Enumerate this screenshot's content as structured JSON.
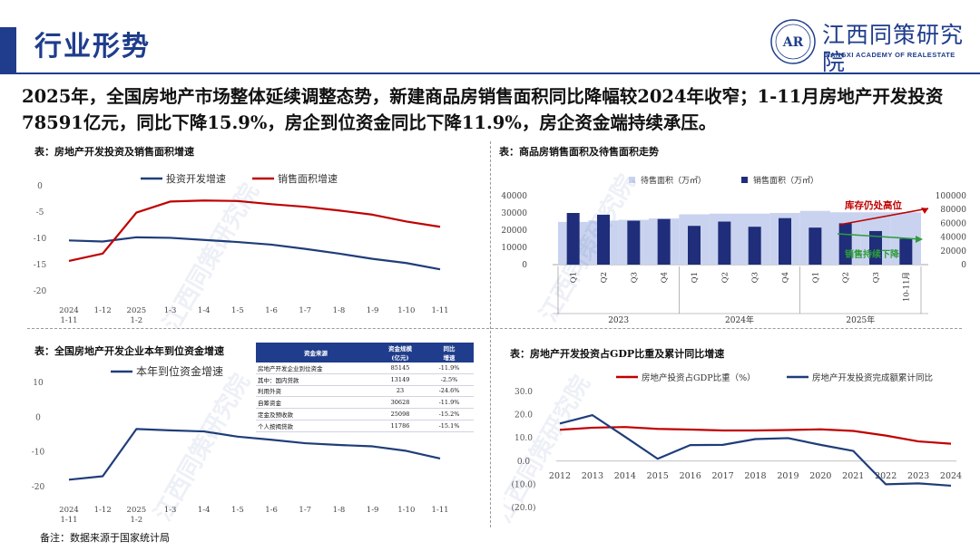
{
  "header": {
    "title": "行业形势",
    "org_name_cn": "江西同策研究院",
    "org_name_en": "JIANGXI ACADEMY OF REALESTATE",
    "logo_text": "AR"
  },
  "summary": "2025年，全国房地产市场整体延续调整态势，新建商品房销售面积同比降幅较2024年收窄；1-11月房地产开发投资78591亿元，同比下降15.9%，房企到位资金同比下降11.9%，房企资金端持续承压。",
  "note": "备注：数据来源于国家统计局",
  "chart_data": [
    {
      "id": "investment-sales",
      "type": "line",
      "title": "表：房地产开发投资及销售面积增速",
      "categories": [
        "2024\n1-11",
        "1-12",
        "2025\n1-2",
        "1-3",
        "1-4",
        "1-5",
        "1-6",
        "1-7",
        "1-8",
        "1-9",
        "1-10",
        "1-11"
      ],
      "category_labels": [
        [
          "2024",
          "1-11"
        ],
        [
          "1-12"
        ],
        [
          "2025",
          "1-2"
        ],
        [
          "1-3"
        ],
        [
          "1-4"
        ],
        [
          "1-5"
        ],
        [
          "1-6"
        ],
        [
          "1-7"
        ],
        [
          "1-8"
        ],
        [
          "1-9"
        ],
        [
          "1-10"
        ],
        [
          "1-11"
        ]
      ],
      "series": [
        {
          "name": "投资开发增速",
          "color": "#1f3d7a",
          "values": [
            -10.4,
            -10.6,
            -9.8,
            -9.9,
            -10.3,
            -10.7,
            -11.2,
            -12.0,
            -12.9,
            -13.9,
            -14.7,
            -15.9
          ]
        },
        {
          "name": "销售面积增速",
          "color": "#c00000",
          "values": [
            -14.3,
            -12.9,
            -5.1,
            -3.0,
            -2.8,
            -2.9,
            -3.5,
            -4.0,
            -4.7,
            -5.5,
            -6.8,
            -7.8
          ]
        }
      ],
      "ylim": [
        -20,
        0
      ],
      "yticks": [
        "0",
        "-5",
        "-10",
        "-15",
        "-20"
      ],
      "legend": "top"
    },
    {
      "id": "area-inventory",
      "type": "bar",
      "title": "表：商品房销售面积及待售面积走势",
      "categories": [
        "Q1",
        "Q2",
        "Q3",
        "Q4",
        "Q1",
        "Q2",
        "Q3",
        "Q4",
        "Q1",
        "Q2",
        "Q3",
        "10-11月"
      ],
      "groups": [
        {
          "label": "2023",
          "count": 4
        },
        {
          "label": "2024年",
          "count": 4
        },
        {
          "label": "2025年",
          "count": 4
        }
      ],
      "series": [
        {
          "name": "待售面积（万㎡）",
          "axis": "right",
          "color": "#c9d3ef",
          "values": [
            62000,
            64000,
            65000,
            67000,
            73000,
            74000,
            74000,
            75000,
            78000,
            76000,
            76000,
            76000
          ]
        },
        {
          "name": "销售面积（万㎡）",
          "axis": "left",
          "color": "#1f2d7a",
          "values": [
            30000,
            29000,
            25500,
            26500,
            22500,
            25000,
            22000,
            27000,
            21500,
            24000,
            19500,
            15000
          ]
        }
      ],
      "ylim_left": [
        0,
        40000
      ],
      "yticks_left": [
        "40000",
        "30000",
        "20000",
        "10000",
        "0"
      ],
      "ylim_right": [
        0,
        100000
      ],
      "yticks_right": [
        "100000",
        "80000",
        "60000",
        "40000",
        "20000",
        "0"
      ],
      "annotations": [
        "库存仍处高位",
        "销售持续下降"
      ],
      "legend": "top"
    },
    {
      "id": "funds-arrival",
      "type": "line",
      "title": "表：全国房地产开发企业本年到位资金增速",
      "categories": [
        "2024\n1-11",
        "1-12",
        "2025\n1-2",
        "1-3",
        "1-4",
        "1-5",
        "1-6",
        "1-7",
        "1-8",
        "1-9",
        "1-10",
        "1-11"
      ],
      "category_labels": [
        [
          "2024",
          "1-11"
        ],
        [
          "1-12"
        ],
        [
          "2025",
          "1-2"
        ],
        [
          "1-3"
        ],
        [
          "1-4"
        ],
        [
          "1-5"
        ],
        [
          "1-6"
        ],
        [
          "1-7"
        ],
        [
          "1-8"
        ],
        [
          "1-9"
        ],
        [
          "1-10"
        ],
        [
          "1-11"
        ]
      ],
      "series": [
        {
          "name": "本年到位资金增速",
          "color": "#1f3d7a",
          "values": [
            -18.0,
            -17.0,
            -3.4,
            -3.8,
            -4.1,
            -5.6,
            -6.5,
            -7.5,
            -8.0,
            -8.4,
            -9.7,
            -11.9
          ]
        }
      ],
      "ylim": [
        -20,
        10
      ],
      "yticks": [
        "10",
        "0",
        "-10",
        "-20"
      ],
      "legend": "top"
    },
    {
      "id": "gdp-share",
      "type": "line",
      "title": "表：房地产开发投资占GDP比重及累计同比增速",
      "categories": [
        "2012",
        "2013",
        "2014",
        "2015",
        "2016",
        "2017",
        "2018",
        "2019",
        "2020",
        "2021",
        "2022",
        "2023",
        "2024"
      ],
      "series": [
        {
          "name": "房地产投资占GDP比重（%）",
          "color": "#c00000",
          "values": [
            13.5,
            14.4,
            14.7,
            13.9,
            13.6,
            13.2,
            13.2,
            13.4,
            13.7,
            13.0,
            11.0,
            8.5,
            7.5
          ]
        },
        {
          "name": "房地产开发投资完成额累计同比",
          "color": "#1f3d7a",
          "values": [
            16.2,
            19.8,
            10.5,
            1.0,
            6.9,
            7.0,
            9.5,
            9.9,
            7.0,
            4.4,
            -10.0,
            -9.6,
            -10.6
          ]
        }
      ],
      "ylim": [
        -20,
        30
      ],
      "yticks": [
        "30.0",
        "20.0",
        "10.0",
        "0.0",
        "(10.0)",
        "(20.0)"
      ],
      "legend": "top"
    }
  ],
  "fund_table": {
    "headers": [
      "资金来源",
      "资金规模\n(亿元)",
      "同比\n增速"
    ],
    "header_lines": [
      [
        "资金来源"
      ],
      [
        "资金规模",
        "(亿元)"
      ],
      [
        "同比",
        "增速"
      ]
    ],
    "rows": [
      [
        "房地产开发企业到位资金",
        "85145",
        "-11.9%"
      ],
      [
        "其中：国内贷款",
        "13149",
        "-2.5%"
      ],
      [
        "利用外资",
        "23",
        "-24.6%"
      ],
      [
        "自筹资金",
        "30628",
        "-11.9%"
      ],
      [
        "定金及预收款",
        "25098",
        "-15.2%"
      ],
      [
        "个人按揭贷款",
        "11786",
        "-15.1%"
      ]
    ]
  },
  "watermark": "江西同策研究院"
}
